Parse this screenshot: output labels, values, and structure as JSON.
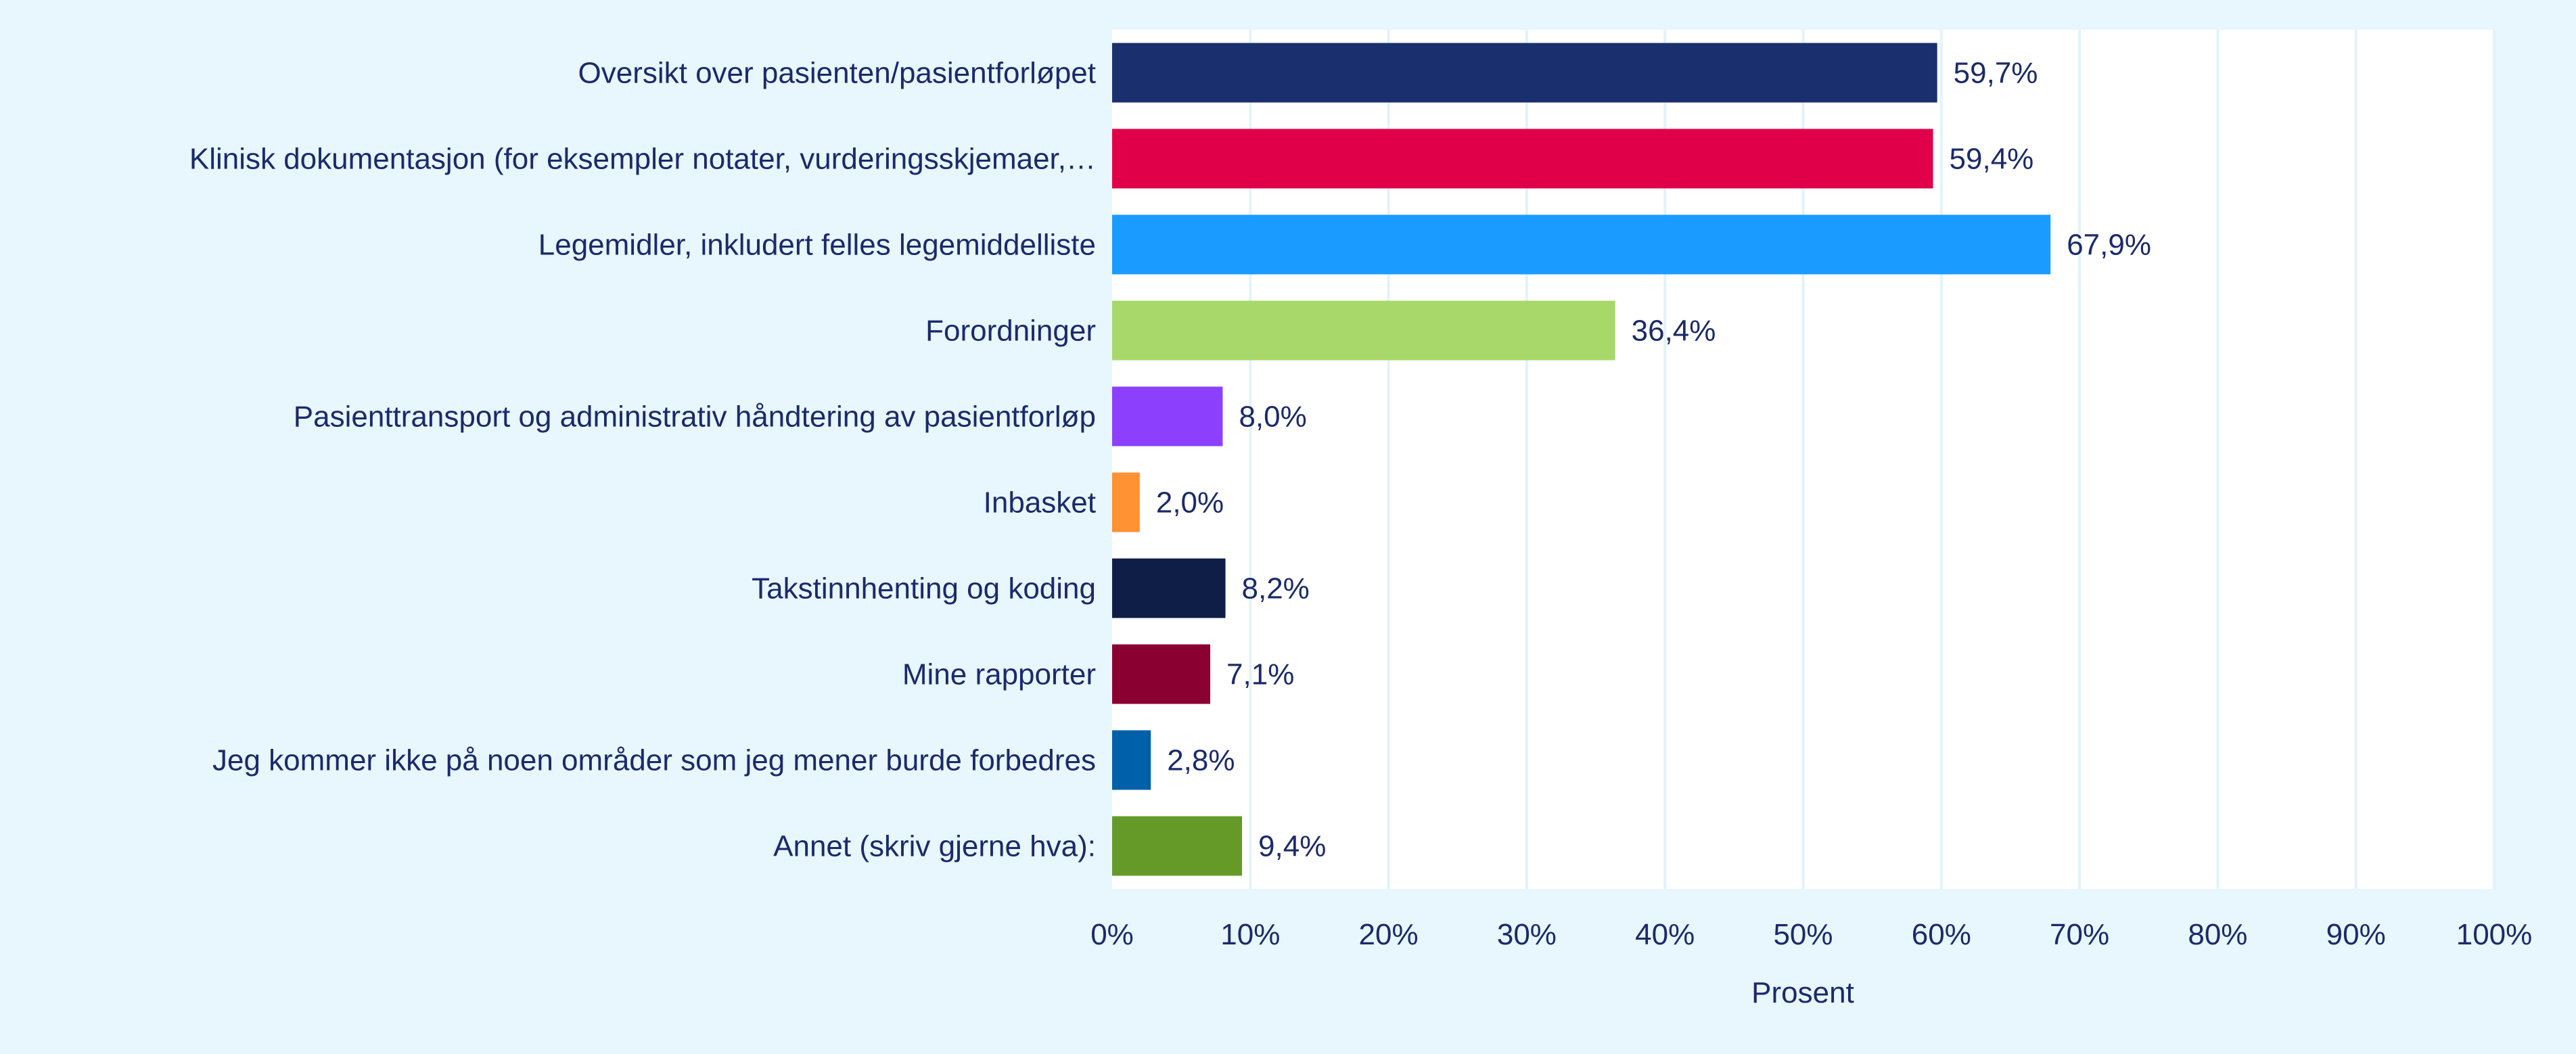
{
  "chart_data": {
    "type": "bar",
    "orientation": "horizontal",
    "title": "",
    "xlabel": "Prosent",
    "ylabel": "",
    "xlim": [
      0,
      100
    ],
    "grid": true,
    "categories": [
      "Oversikt over pasienten/pasientforløpet",
      "Klinisk dokumentasjon (for eksempler notater, vurderingsskjemaer,…",
      "Legemidler, inkludert felles legemiddelliste",
      "Forordninger",
      "Pasienttransport og administrativ håndtering av pasientforløp",
      "Inbasket",
      "Takstinnhenting og koding",
      "Mine rapporter",
      "Jeg kommer ikke på noen områder som jeg mener burde forbedres",
      "Annet (skriv gjerne hva):"
    ],
    "values": [
      59.7,
      59.4,
      67.9,
      36.4,
      8.0,
      2.0,
      8.2,
      7.1,
      2.8,
      9.4
    ],
    "value_labels": [
      "59,7%",
      "59,4%",
      "67,9%",
      "36,4%",
      "8,0%",
      "2,0%",
      "8,2%",
      "7,1%",
      "2,8%",
      "9,4%"
    ],
    "colors": [
      "#1a2f6e",
      "#e0004a",
      "#1a9bff",
      "#a8d86a",
      "#8c3ffc",
      "#ff9233",
      "#0e1e47",
      "#8a0030",
      "#0060a8",
      "#659a28"
    ],
    "x_ticks": [
      0,
      10,
      20,
      30,
      40,
      50,
      60,
      70,
      80,
      90,
      100
    ],
    "x_tick_labels": [
      "0%",
      "10%",
      "20%",
      "30%",
      "40%",
      "50%",
      "60%",
      "70%",
      "80%",
      "90%",
      "100%"
    ]
  }
}
